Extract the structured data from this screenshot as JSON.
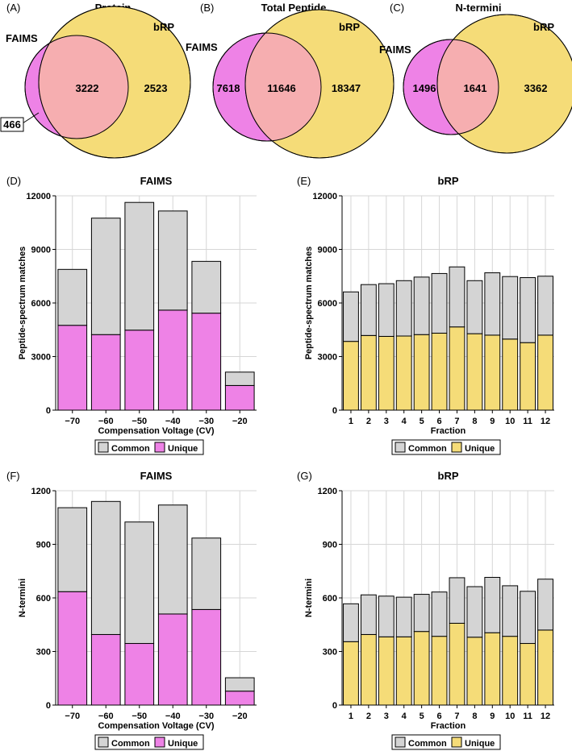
{
  "colors": {
    "faims": "#ee82e6",
    "brp": "#f5dc78",
    "overlap": "#f6aeb0",
    "common": "#d4d4d4"
  },
  "venn": [
    {
      "panel": "(A)",
      "title": "Protein",
      "left_label": "FAIMS",
      "right_label": "bRP",
      "left_only": "466",
      "both": "3222",
      "right_only": "2523"
    },
    {
      "panel": "(B)",
      "title": "Total Peptide",
      "left_label": "FAIMS",
      "right_label": "bRP",
      "left_only": "7618",
      "both": "11646",
      "right_only": "18347"
    },
    {
      "panel": "(C)",
      "title": "N-termini",
      "left_label": "FAIMS",
      "right_label": "bRP",
      "left_only": "1496",
      "both": "1641",
      "right_only": "3362"
    }
  ],
  "legend": {
    "common": "Common",
    "unique": "Unique"
  },
  "chart_data": [
    {
      "panel": "(D)",
      "type": "bar",
      "stacked": true,
      "title": "FAIMS",
      "xlabel": "Compensation Voltage (CV)",
      "ylabel": "Peptide-spectrum matches",
      "ylim": [
        0,
        12000
      ],
      "yticks": [
        0,
        3000,
        6000,
        9000,
        12000
      ],
      "categories": [
        "−70",
        "−60",
        "−50",
        "−40",
        "−30",
        "−20"
      ],
      "series": [
        {
          "name": "Unique",
          "values": [
            4750,
            4230,
            4480,
            5600,
            5430,
            1380
          ]
        },
        {
          "name": "Common",
          "values": [
            3130,
            6520,
            7150,
            5550,
            2900,
            750
          ]
        }
      ]
    },
    {
      "panel": "(E)",
      "type": "bar",
      "stacked": true,
      "title": "bRP",
      "xlabel": "Fraction",
      "ylabel": "Peptide-spectrum matches",
      "ylim": [
        0,
        12000
      ],
      "yticks": [
        0,
        3000,
        6000,
        9000,
        12000
      ],
      "categories": [
        "1",
        "2",
        "3",
        "4",
        "5",
        "6",
        "7",
        "8",
        "9",
        "10",
        "11",
        "12"
      ],
      "series": [
        {
          "name": "Unique",
          "values": [
            3850,
            4180,
            4130,
            4150,
            4230,
            4310,
            4660,
            4280,
            4200,
            3980,
            3780,
            4200
          ]
        },
        {
          "name": "Common",
          "values": [
            2770,
            2850,
            2950,
            3100,
            3220,
            3340,
            3360,
            2970,
            3490,
            3500,
            3640,
            3300
          ]
        }
      ]
    },
    {
      "panel": "(F)",
      "type": "bar",
      "stacked": true,
      "title": "FAIMS",
      "xlabel": "Compensation Voltage (CV)",
      "ylabel": "N-termini",
      "ylim": [
        0,
        1200
      ],
      "yticks": [
        0,
        300,
        600,
        900,
        1200
      ],
      "categories": [
        "−70",
        "−60",
        "−50",
        "−40",
        "−30",
        "−20"
      ],
      "series": [
        {
          "name": "Unique",
          "values": [
            635,
            395,
            345,
            510,
            535,
            78
          ]
        },
        {
          "name": "Common",
          "values": [
            470,
            745,
            680,
            610,
            400,
            75
          ]
        }
      ]
    },
    {
      "panel": "(G)",
      "type": "bar",
      "stacked": true,
      "title": "bRP",
      "xlabel": "Fraction",
      "ylabel": "N-termini",
      "ylim": [
        0,
        1200
      ],
      "yticks": [
        0,
        300,
        600,
        900,
        1200
      ],
      "categories": [
        "1",
        "2",
        "3",
        "4",
        "5",
        "6",
        "7",
        "8",
        "9",
        "10",
        "11",
        "12"
      ],
      "series": [
        {
          "name": "Unique",
          "values": [
            355,
            395,
            382,
            382,
            412,
            385,
            458,
            380,
            405,
            385,
            345,
            420
          ]
        },
        {
          "name": "Common",
          "values": [
            212,
            222,
            228,
            222,
            208,
            248,
            255,
            283,
            310,
            283,
            292,
            285
          ]
        }
      ]
    }
  ]
}
